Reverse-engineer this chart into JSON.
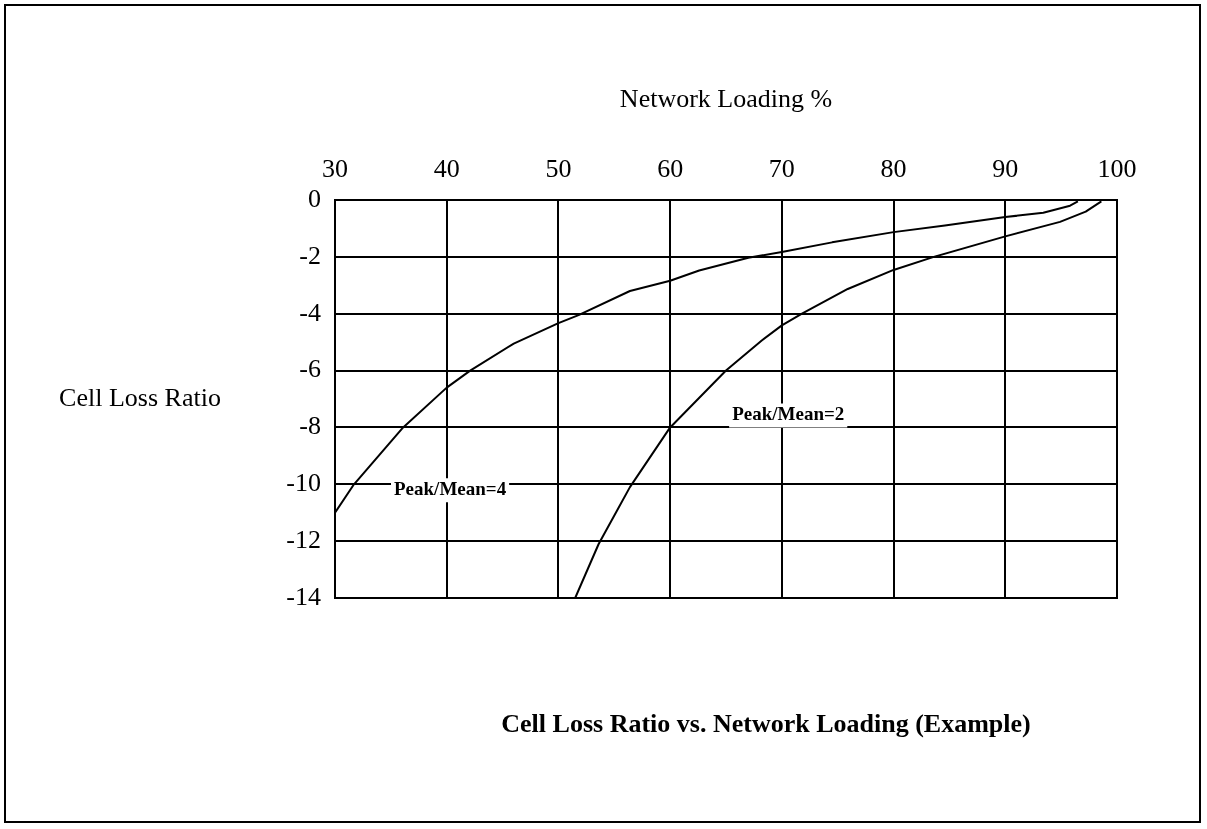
{
  "chart_data": {
    "type": "line",
    "title": "Cell Loss Ratio vs. Network Loading (Example)",
    "xlabel": "Network Loading %",
    "ylabel": "Cell Loss Ratio",
    "xlim": [
      30,
      100
    ],
    "xticks": [
      30,
      40,
      50,
      60,
      70,
      80,
      90,
      100
    ],
    "ylim": [
      -14,
      0
    ],
    "yticks": [
      0,
      -2,
      -4,
      -6,
      -8,
      -10,
      -12,
      -14
    ],
    "grid": true,
    "marker": "none",
    "line_style": "solid",
    "series": [
      {
        "name": "Peak/Mean=4",
        "color": "#000000",
        "x": [
          30,
          31.7,
          36.1,
          40,
          42.1,
          46,
          50,
          51.8,
          56.4,
          60,
          62.6,
          67,
          70,
          74.5,
          80,
          84.6,
          90,
          93.4,
          95.8,
          96.5
        ],
        "values": [
          -11,
          -10,
          -8,
          -6.6,
          -6,
          -5.05,
          -4.33,
          -4.05,
          -3.2,
          -2.84,
          -2.48,
          -2.03,
          -1.83,
          -1.49,
          -1.13,
          -0.9,
          -0.6,
          -0.45,
          -0.2,
          -0.05
        ]
      },
      {
        "name": "Peak/Mean=2",
        "color": "#000000",
        "x": [
          51.5,
          53.6,
          56.4,
          60,
          65,
          68.2,
          70,
          71.8,
          75.9,
          80,
          83.6,
          90,
          94.9,
          97.2,
          98.6
        ],
        "values": [
          -14,
          -12.1,
          -10.1,
          -8,
          -6,
          -4.94,
          -4.41,
          -4,
          -3.13,
          -2.46,
          -2,
          -1.28,
          -0.77,
          -0.41,
          -0.05
        ]
      }
    ]
  }
}
